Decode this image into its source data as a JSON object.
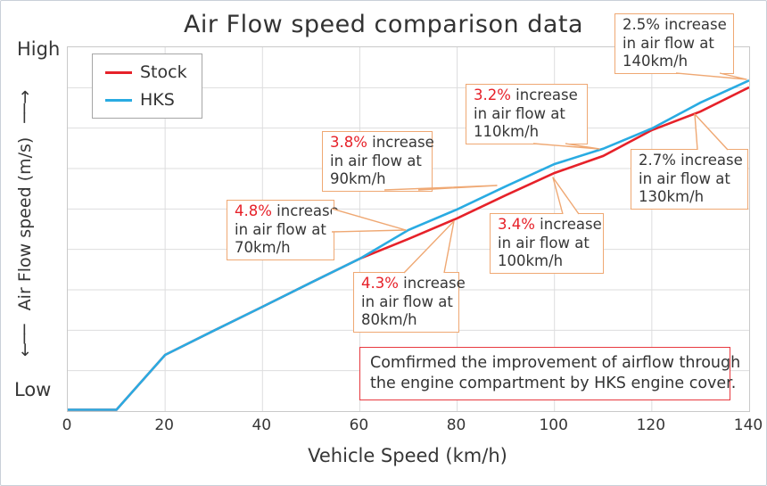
{
  "title": "Air Flow speed comparison data",
  "palette": {
    "stock_red": "#e62129",
    "hks_blue": "#29abe2",
    "callout_border_orange": "#efa873",
    "summary_border_red": "#e8393f",
    "text_dark": "#363636",
    "grid_gray": "#ddddde"
  },
  "y_axis": {
    "high_label": "High",
    "low_label": "Low",
    "arrow_down": "←──",
    "label": "Air Flow speed (m/s)",
    "arrow_up": "──→"
  },
  "x_axis": {
    "label": "Vehicle Speed (km/h)",
    "ticks": [
      "0",
      "20",
      "40",
      "60",
      "80",
      "100",
      "120",
      "140"
    ]
  },
  "legend": {
    "items": [
      {
        "label": "Stock",
        "color": "#e62129"
      },
      {
        "label": "HKS",
        "color": "#29abe2"
      }
    ]
  },
  "annotations": [
    {
      "percent": "2.5%",
      "suffix": "increase",
      "line2": "in air flow at",
      "line3": "140km/h",
      "percent_color": "dark"
    },
    {
      "percent": "3.2%",
      "suffix": "increase",
      "line2": "in air flow at",
      "line3": "110km/h",
      "percent_color": "red"
    },
    {
      "percent": "3.8%",
      "suffix": "increase",
      "line2": "in air flow at",
      "line3": "90km/h",
      "percent_color": "red"
    },
    {
      "percent": "4.8%",
      "suffix": "increase",
      "line2": "in air flow at",
      "line3": "70km/h",
      "percent_color": "red"
    },
    {
      "percent": "2.7%",
      "suffix": "increase",
      "line2": "in air flow at",
      "line3": "130km/h",
      "percent_color": "dark"
    },
    {
      "percent": "3.4%",
      "suffix": "increase",
      "line2": "in air flow at",
      "line3": "100km/h",
      "percent_color": "red"
    },
    {
      "percent": "4.3%",
      "suffix": "increase",
      "line2": "in air flow at",
      "line3": "80km/h",
      "percent_color": "red"
    }
  ],
  "summary_box": {
    "line1": "Comfirmed the improvement of airflow through",
    "line2": "the engine compartment by HKS engine cover."
  },
  "chart_data": {
    "type": "line",
    "title": "Air Flow speed comparison data",
    "xlabel": "Vehicle Speed (km/h)",
    "ylabel": "Air Flow speed (m/s)",
    "y_axis_note": "qualitative axis, Low (0) to High (9) in relative units, no numeric ticks",
    "xlim": [
      0,
      140
    ],
    "ylim": [
      0,
      9
    ],
    "x_tick_step": 20,
    "y_grid_step": 1,
    "grid": true,
    "legend_position": "top-left",
    "x": [
      0,
      10,
      20,
      30,
      40,
      50,
      60,
      70,
      80,
      90,
      100,
      110,
      120,
      130,
      140
    ],
    "series": [
      {
        "name": "Stock",
        "color": "#e62129",
        "values": [
          0,
          0,
          1.39,
          1.99,
          2.58,
          3.18,
          3.77,
          4.26,
          4.77,
          5.34,
          5.89,
          6.31,
          6.95,
          7.41,
          8.01
        ]
      },
      {
        "name": "HKS",
        "color": "#29abe2",
        "values": [
          0,
          0,
          1.39,
          1.99,
          2.58,
          3.18,
          3.77,
          4.48,
          4.99,
          5.56,
          6.11,
          6.49,
          6.99,
          7.63,
          8.18
        ]
      }
    ],
    "increase_callouts": [
      {
        "speed_kmh": 70,
        "increase": "4.8%"
      },
      {
        "speed_kmh": 80,
        "increase": "4.3%"
      },
      {
        "speed_kmh": 90,
        "increase": "3.8%"
      },
      {
        "speed_kmh": 100,
        "increase": "3.4%"
      },
      {
        "speed_kmh": 110,
        "increase": "3.2%"
      },
      {
        "speed_kmh": 130,
        "increase": "2.7%"
      },
      {
        "speed_kmh": 140,
        "increase": "2.5%"
      }
    ]
  }
}
